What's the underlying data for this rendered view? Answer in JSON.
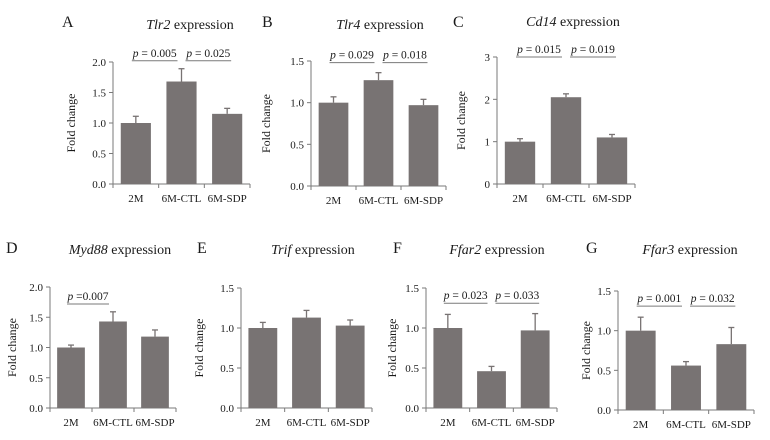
{
  "figure_colors": {
    "bar": "#787373",
    "axis": "#7a7a7a",
    "text": "#1a1a1a"
  },
  "chart_data": [
    {
      "panel": "A",
      "type": "bar",
      "title_gene": "Tlr2",
      "title_rest": " expression",
      "ylabel": "Fold change",
      "categories": [
        "2M",
        "6M-CTL",
        "6M-SDP"
      ],
      "values": [
        1.0,
        1.68,
        1.15
      ],
      "errors": [
        0.11,
        0.21,
        0.09
      ],
      "ylim": [
        0,
        2.0
      ],
      "yticks": [
        "0.0",
        "0.5",
        "1.0",
        "1.5",
        "2.0"
      ],
      "yticks_num": [
        0,
        0.5,
        1.0,
        1.5,
        2.0
      ],
      "sig": [
        {
          "from": 0,
          "to": 1,
          "level": 2.02,
          "p_label": "p",
          "p_value": " = 0.005"
        },
        {
          "from": 1,
          "to": 2,
          "level": 2.02,
          "p_label": "p",
          "p_value": " = 0.025"
        }
      ]
    },
    {
      "panel": "B",
      "type": "bar",
      "title_gene": "Tlr4",
      "title_rest": " expression",
      "ylabel": "Fold change",
      "categories": [
        "2M",
        "6M-CTL",
        "6M-SDP"
      ],
      "values": [
        1.0,
        1.27,
        0.97
      ],
      "errors": [
        0.07,
        0.09,
        0.07
      ],
      "ylim": [
        0,
        1.5
      ],
      "yticks": [
        "0.0",
        "0.5",
        "1.0",
        "1.5"
      ],
      "yticks_num": [
        0,
        0.5,
        1.0,
        1.5
      ],
      "sig": [
        {
          "from": 0,
          "to": 1,
          "level": 1.48,
          "p_label": "p",
          "p_value": " = 0.029"
        },
        {
          "from": 1,
          "to": 2,
          "level": 1.48,
          "p_label": "p",
          "p_value": " = 0.018"
        }
      ]
    },
    {
      "panel": "C",
      "type": "bar",
      "title_gene": "Cd14",
      "title_rest": " expression",
      "ylabel": "Fold change",
      "categories": [
        "2M",
        "6M-CTL",
        "6M-SDP"
      ],
      "values": [
        1.0,
        2.05,
        1.1
      ],
      "errors": [
        0.07,
        0.08,
        0.07
      ],
      "ylim": [
        0,
        3
      ],
      "yticks": [
        "0",
        "1",
        "2",
        "3"
      ],
      "yticks_num": [
        0,
        1,
        2,
        3
      ],
      "sig": [
        {
          "from": 0,
          "to": 1,
          "level": 3.0,
          "p_label": "p",
          "p_value": " = 0.015"
        },
        {
          "from": 1,
          "to": 2,
          "level": 3.0,
          "p_label": "p",
          "p_value": " = 0.019"
        }
      ]
    },
    {
      "panel": "D",
      "type": "bar",
      "title_gene": "Myd88",
      "title_rest": " expression",
      "ylabel": "Fold change",
      "categories": [
        "2M",
        "6M-CTL",
        "6M-SDP"
      ],
      "values": [
        1.0,
        1.43,
        1.18
      ],
      "errors": [
        0.04,
        0.16,
        0.11
      ],
      "ylim": [
        0,
        2.0
      ],
      "yticks": [
        "0.0",
        "0.5",
        "1.0",
        "1.5",
        "2.0"
      ],
      "yticks_num": [
        0,
        0.5,
        1.0,
        1.5,
        2.0
      ],
      "sig": [
        {
          "from": 0,
          "to": 1,
          "level": 1.72,
          "p_label": "p",
          "p_value": " =0.007"
        }
      ]
    },
    {
      "panel": "E",
      "type": "bar",
      "title_gene": "Trif",
      "title_rest": " expression",
      "ylabel": "Fold change",
      "categories": [
        "2M",
        "6M-CTL",
        "6M-SDP"
      ],
      "values": [
        1.0,
        1.13,
        1.03
      ],
      "errors": [
        0.07,
        0.09,
        0.07
      ],
      "ylim": [
        0,
        1.5
      ],
      "yticks": [
        "0.0",
        "0.5",
        "1.0",
        "1.5"
      ],
      "yticks_num": [
        0,
        0.5,
        1.0,
        1.5
      ],
      "sig": []
    },
    {
      "panel": "F",
      "type": "bar",
      "title_gene": "Ffar2",
      "title_rest": " expression",
      "ylabel": "Fold change",
      "categories": [
        "2M",
        "6M-CTL",
        "6M-SDP"
      ],
      "values": [
        1.0,
        0.46,
        0.97
      ],
      "errors": [
        0.17,
        0.06,
        0.21
      ],
      "ylim": [
        0,
        1.5
      ],
      "yticks": [
        "0.0",
        "0.5",
        "1.0",
        "1.5"
      ],
      "yticks_num": [
        0,
        0.5,
        1.0,
        1.5
      ],
      "sig": [
        {
          "from": 0,
          "to": 1,
          "level": 1.31,
          "p_label": "p",
          "p_value": " = 0.023"
        },
        {
          "from": 1,
          "to": 2,
          "level": 1.31,
          "p_label": "p",
          "p_value": " = 0.033"
        }
      ]
    },
    {
      "panel": "G",
      "type": "bar",
      "title_gene": "Ffar3",
      "title_rest": " expression",
      "ylabel": "Fold change",
      "categories": [
        "2M",
        "6M-CTL",
        "6M-SDP"
      ],
      "values": [
        1.0,
        0.56,
        0.83
      ],
      "errors": [
        0.17,
        0.05,
        0.21
      ],
      "ylim": [
        0,
        1.5
      ],
      "yticks": [
        "0.0",
        "0.5",
        "1.0",
        "1.5"
      ],
      "yticks_num": [
        0,
        0.5,
        1.0,
        1.5
      ],
      "sig": [
        {
          "from": 0,
          "to": 1,
          "level": 1.31,
          "p_label": "p",
          "p_value": " = 0.001"
        },
        {
          "from": 1,
          "to": 2,
          "level": 1.31,
          "p_label": "p",
          "p_value": " = 0.032"
        }
      ]
    }
  ]
}
